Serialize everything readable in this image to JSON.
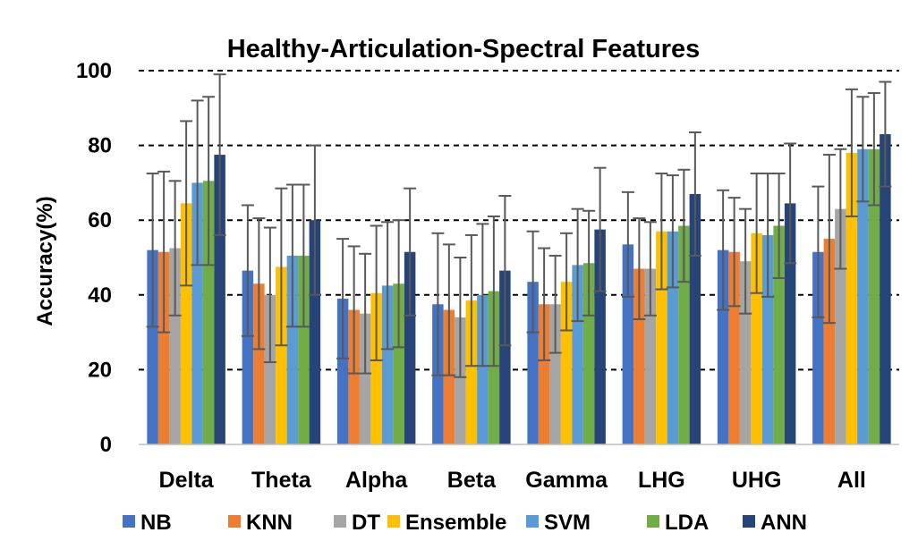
{
  "chart_data": {
    "type": "bar",
    "title": "Healthy-Articulation-Spectral Features",
    "xlabel": "",
    "ylabel": "Accuracy(%)",
    "ylim": [
      0,
      100
    ],
    "yticks": [
      0,
      20,
      40,
      60,
      80,
      100
    ],
    "grid": "horizontal dashed",
    "legend_position": "bottom",
    "categories": [
      "Delta",
      "Theta",
      "Alpha",
      "Beta",
      "Gamma",
      "LHG",
      "UHG",
      "All"
    ],
    "series": [
      {
        "name": "NB",
        "color": "#4472C4",
        "values": [
          52,
          46.5,
          39,
          37.5,
          43.5,
          53.5,
          52,
          51.5
        ],
        "errors": [
          20.5,
          17.5,
          16,
          19,
          13.5,
          14,
          16,
          17.5
        ]
      },
      {
        "name": "KNN",
        "color": "#ED7D31",
        "values": [
          51.5,
          43,
          36,
          36,
          37.5,
          47,
          51.5,
          55
        ],
        "errors": [
          21.5,
          17.5,
          17,
          17.5,
          15,
          13.5,
          14.5,
          22.5
        ]
      },
      {
        "name": "DT",
        "color": "#A5A5A5",
        "values": [
          52.5,
          40,
          35,
          34,
          37.5,
          47,
          49,
          63
        ],
        "errors": [
          18,
          18,
          16,
          16,
          13,
          12.5,
          14,
          16
        ]
      },
      {
        "name": "Ensemble",
        "color": "#FFC000",
        "values": [
          64.5,
          47.5,
          40.5,
          38.5,
          43.5,
          57,
          56.5,
          78
        ],
        "errors": [
          22,
          21,
          18,
          17.5,
          13,
          15.5,
          16,
          17
        ]
      },
      {
        "name": "SVM",
        "color": "#5B9BD5",
        "values": [
          70,
          50.5,
          42.5,
          40,
          48,
          57,
          56,
          79
        ],
        "errors": [
          22,
          19,
          17,
          19,
          15,
          15,
          16.5,
          14
        ]
      },
      {
        "name": "LDA",
        "color": "#70AD47",
        "values": [
          70.5,
          50.5,
          43,
          41,
          48.5,
          58.5,
          58.5,
          79
        ],
        "errors": [
          22.5,
          19,
          17,
          20,
          14,
          15,
          14,
          15
        ]
      },
      {
        "name": "ANN",
        "color": "#264478",
        "values": [
          77.5,
          60,
          51.5,
          46.5,
          57.5,
          67,
          64.5,
          83
        ],
        "errors": [
          21.5,
          20,
          17,
          20,
          16.5,
          16.5,
          16,
          14
        ]
      }
    ]
  }
}
